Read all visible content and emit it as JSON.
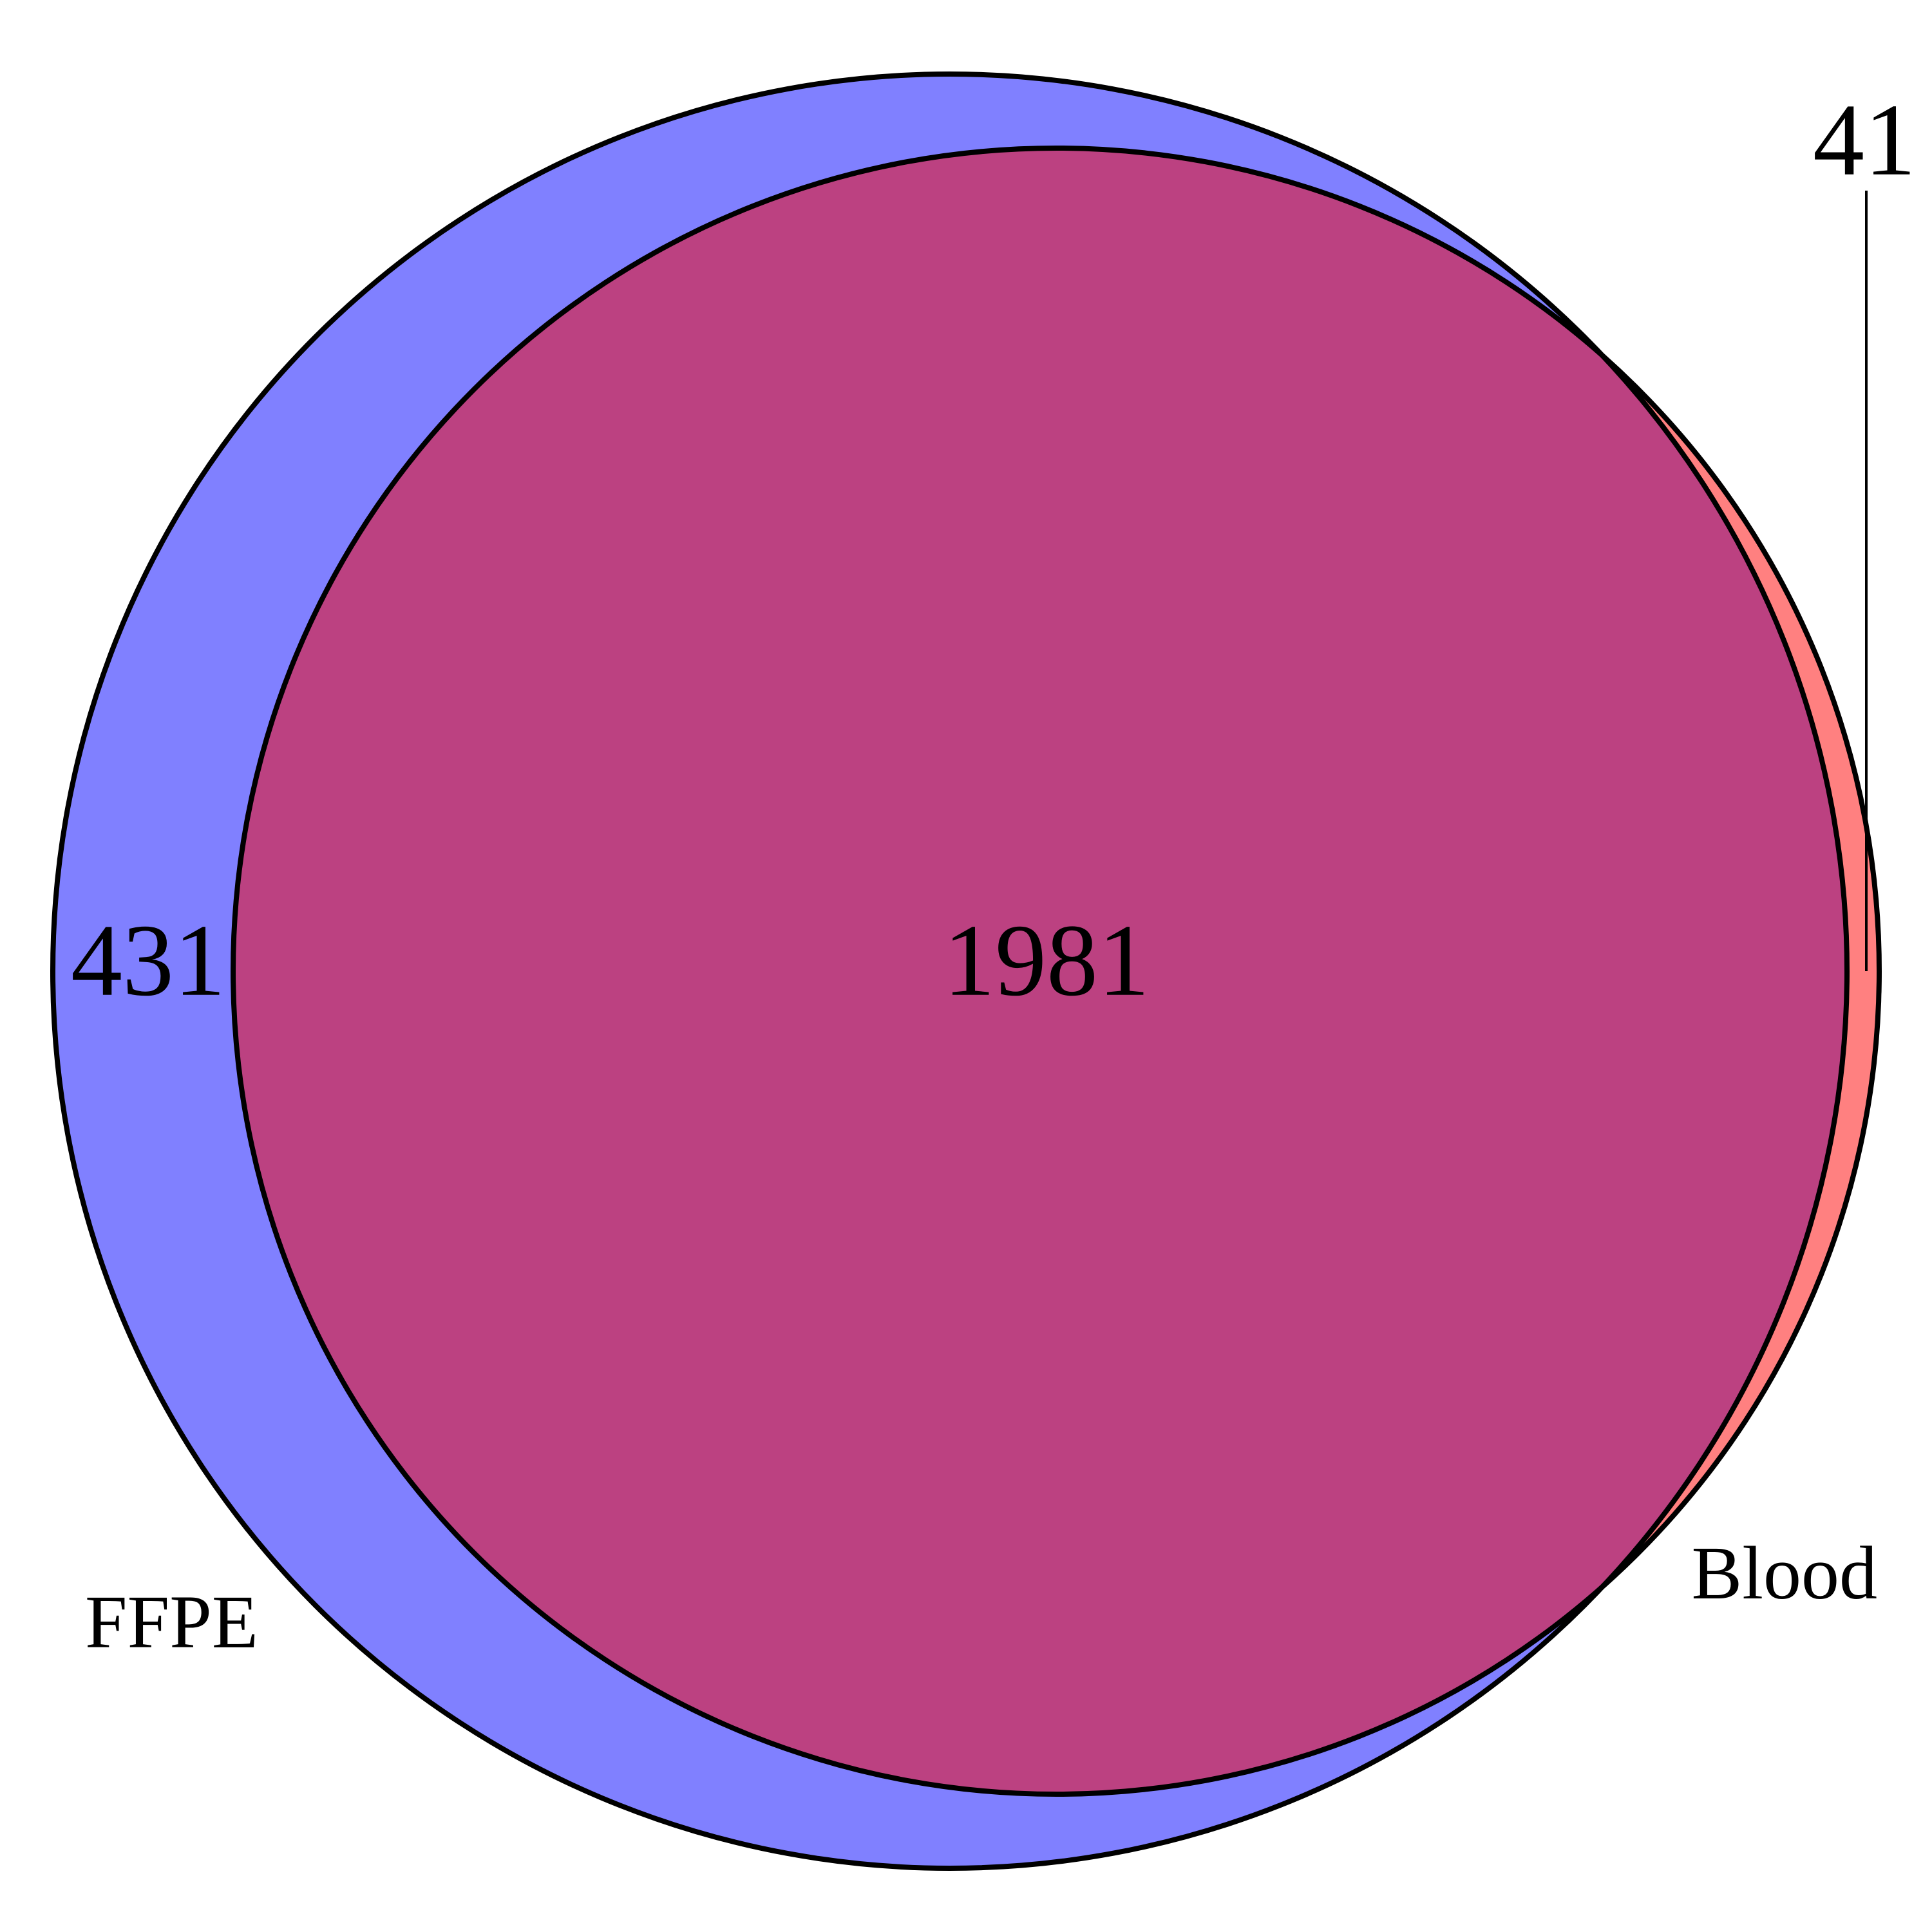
{
  "chart_data": {
    "type": "venn",
    "sets": [
      {
        "name": "FFPE",
        "color": "#8080FF",
        "only_count": 431
      },
      {
        "name": "Blood",
        "color": "#FF8080",
        "only_count": 41
      }
    ],
    "intersection": {
      "count": 1981,
      "color": "#BC4181"
    }
  },
  "labels": {
    "ffpe_only": "431",
    "intersection": "1981",
    "blood_only": "41",
    "ffpe_name": "FFPE",
    "blood_name": "Blood"
  }
}
